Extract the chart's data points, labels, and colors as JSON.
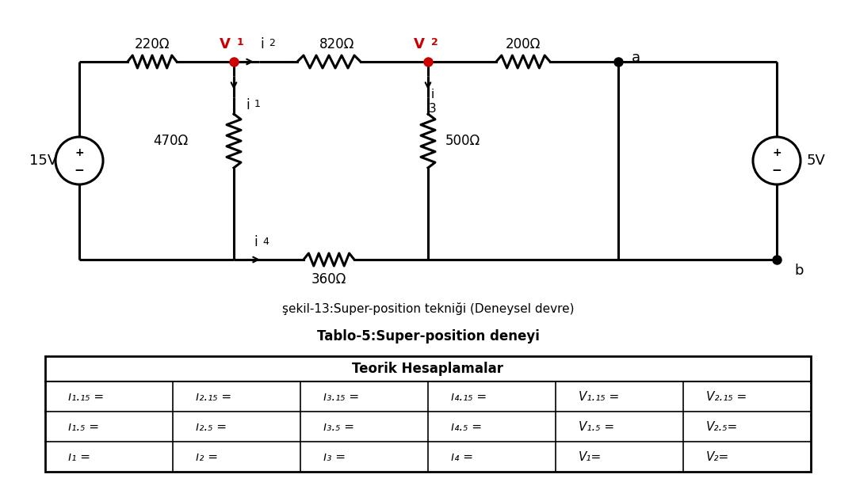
{
  "background_color": "#ffffff",
  "title_circuit": "şekil-13:Super-position tekniği (Deneysel devre)",
  "title_table": "Tablo-5:Super-position deneyi",
  "table_header": "Teorik Hesaplamalar",
  "node_color_red": "#cc0000",
  "node_color_black": "#000000",
  "lw_wire": 2.2,
  "lw_component": 2.2
}
